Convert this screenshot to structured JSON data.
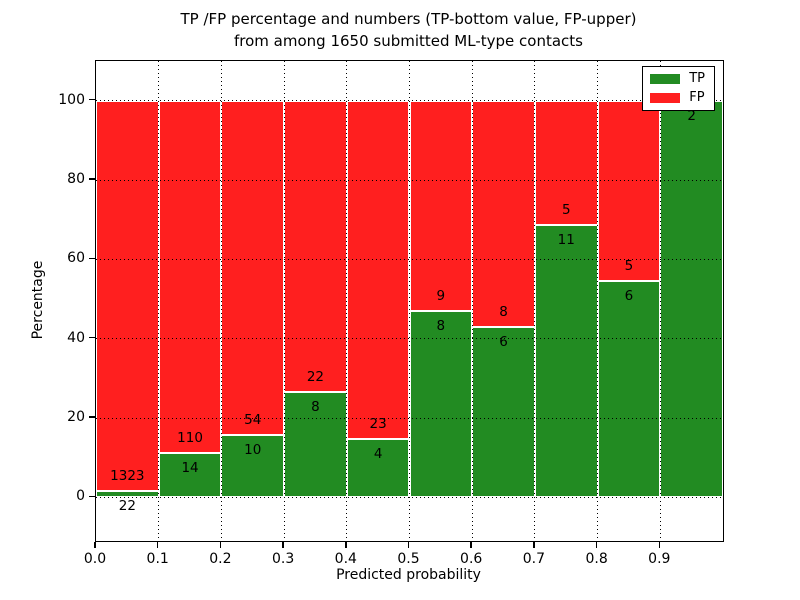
{
  "title": {
    "line1": "TP /FP percentage and numbers (TP-bottom value, FP-upper)",
    "line2": "from among 1650 submitted ML-type contacts"
  },
  "axes": {
    "ylabel": "Percentage",
    "xlabel": "Predicted probability",
    "yticks": [
      "0",
      "20",
      "40",
      "60",
      "80",
      "100"
    ],
    "xticks": [
      "0.0",
      "0.1",
      "0.2",
      "0.3",
      "0.4",
      "0.5",
      "0.6",
      "0.7",
      "0.8",
      "0.9"
    ]
  },
  "legend": [
    {
      "label": "TP",
      "color": "#228b22"
    },
    {
      "label": "FP",
      "color": "#ff1f1f"
    }
  ],
  "colors": {
    "tp_green": "#228b22",
    "fp_red": "#ff1f1f",
    "grid": "#000000",
    "background": "#ffffff"
  },
  "chart_data": {
    "type": "bar",
    "stacked": true,
    "normalized_to_percent": true,
    "title": "TP /FP percentage and numbers (TP-bottom value, FP-upper) from among 1650 submitted ML-type contacts",
    "xlabel": "Predicted probability",
    "ylabel": "Percentage",
    "xlim": [
      0.0,
      1.0
    ],
    "ylim": [
      -11,
      110
    ],
    "grid": "dotted",
    "legend_position": "upper right",
    "total_submitted": 1650,
    "bin_width": 0.1,
    "categories": [
      "0.0-0.1",
      "0.1-0.2",
      "0.2-0.3",
      "0.3-0.4",
      "0.4-0.5",
      "0.5-0.6",
      "0.6-0.7",
      "0.7-0.8",
      "0.8-0.9",
      "0.9-1.0"
    ],
    "series": [
      {
        "name": "TP",
        "color": "#228b22",
        "values": [
          22,
          14,
          10,
          8,
          4,
          8,
          6,
          11,
          6,
          2
        ]
      },
      {
        "name": "FP",
        "color": "#ff1f1f",
        "values": [
          1323,
          110,
          54,
          22,
          23,
          9,
          8,
          5,
          5,
          0
        ]
      }
    ],
    "tp_pct": [
      1.64,
      11.29,
      15.63,
      26.67,
      14.81,
      47.06,
      42.86,
      68.75,
      54.55,
      100.0
    ]
  }
}
